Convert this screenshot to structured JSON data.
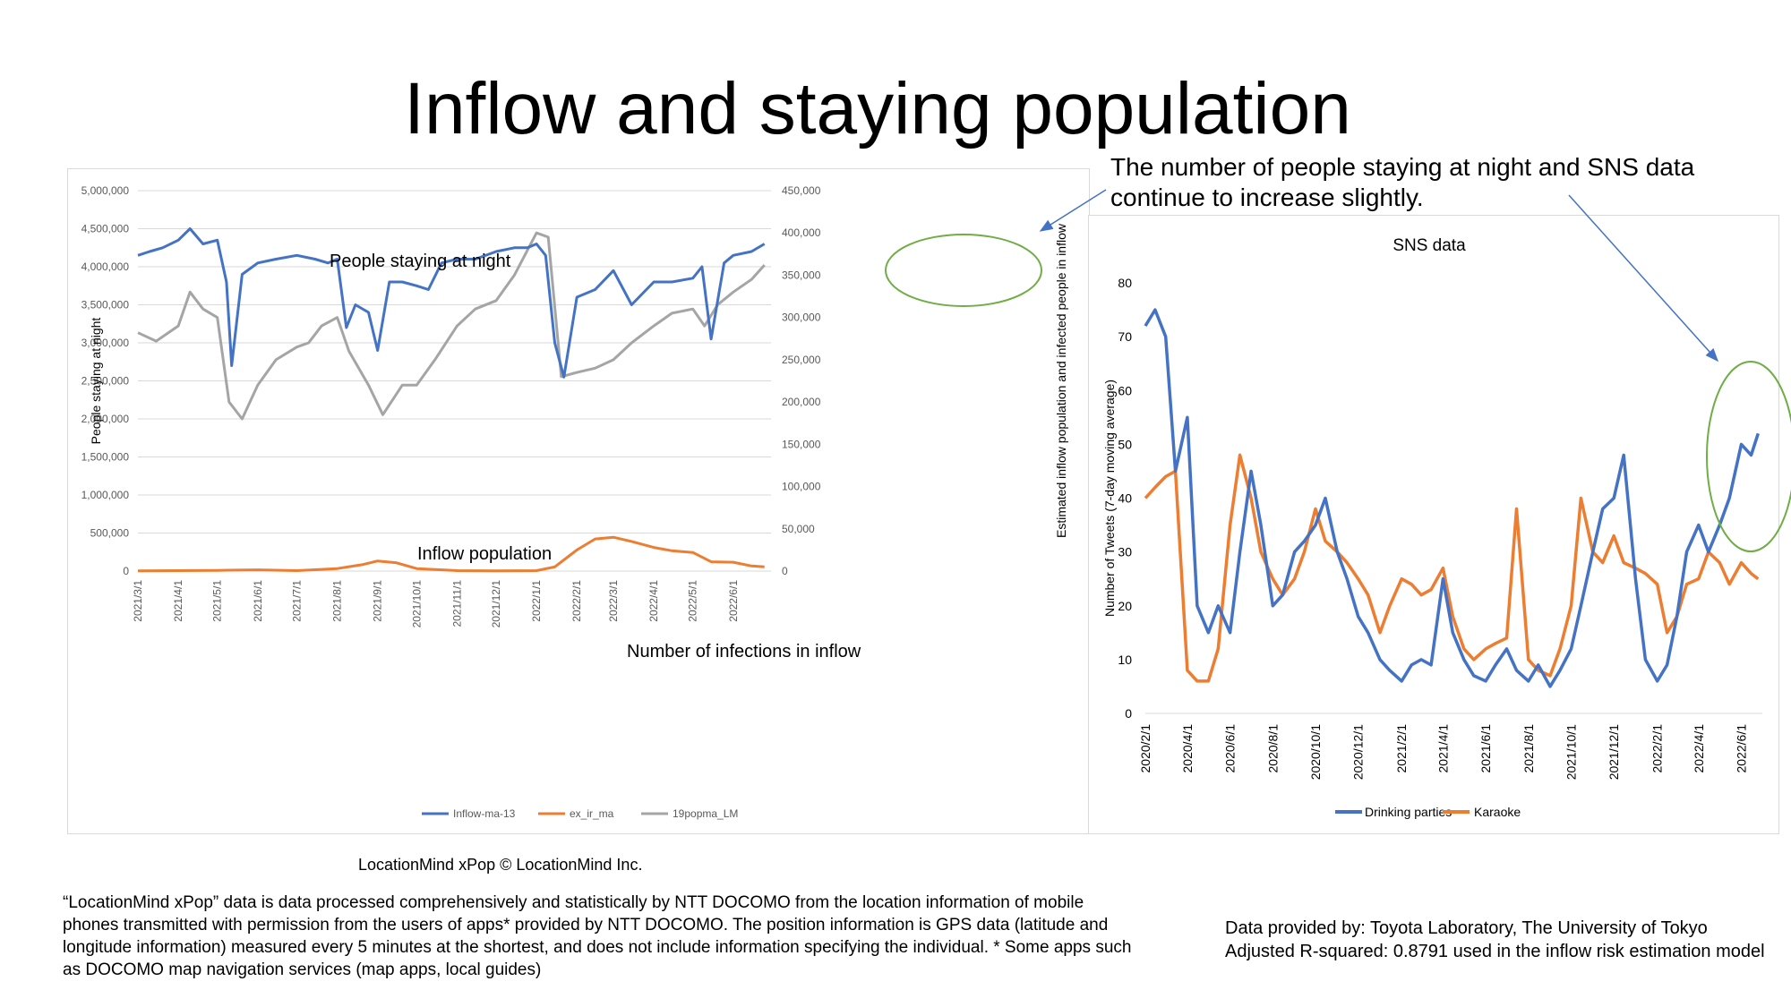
{
  "slide": {
    "title": "Inflow and staying population",
    "annotation_right": "The number of people staying at night and SNS data continue to increase slightly.",
    "credit": "LocationMind xPop © LocationMind Inc.",
    "footnote": "“LocationMind xPop” data is data processed comprehensively and statistically by NTT DOCOMO from the location information of mobile phones transmitted with permission from the users of apps* provided by NTT DOCOMO. The position information is GPS data (latitude and longitude information) measured every 5 minutes at the shortest, and does not include information specifying the individual. * Some apps such as DOCOMO map navigation services (map apps, local guides)",
    "data_source": "Data provided by: Toyota Laboratory, The University of Tokyo Adjusted R-squared: 0.8791 used in the inflow risk estimation model",
    "colors": {
      "blue": "#4472c4",
      "orange": "#ed7d31",
      "gray": "#a5a5a5",
      "green_circle": "#70ad47",
      "arrow": "#4472c4"
    }
  },
  "chart_data": [
    {
      "type": "line",
      "title": "",
      "ylabel": "People staying at night",
      "y2label": "Estimated inflow population and infected people in inflow",
      "ylim": [
        0,
        5000000
      ],
      "y2lim": [
        0,
        450000
      ],
      "yticks": [
        "5,000,000",
        "4,500,000",
        "4,000,000",
        "3,500,000",
        "3,000,000",
        "2,500,000",
        "2,000,000",
        "1,500,000",
        "1,000,000",
        "500,000",
        "0"
      ],
      "y2ticks": [
        "450,000",
        "400,000",
        "350,000",
        "300,000",
        "250,000",
        "200,000",
        "150,000",
        "100,000",
        "50,000",
        "0"
      ],
      "xticks": [
        "2021/3/1",
        "2021/4/1",
        "2021/5/1",
        "2021/6/1",
        "2021/7/1",
        "2021/8/1",
        "2021/9/1",
        "2021/10/1",
        "2021/11/1",
        "2021/12/1",
        "2022/1/1",
        "2022/2/1",
        "2022/3/1",
        "2022/4/1",
        "2022/5/1",
        "2022/6/1"
      ],
      "annotations": {
        "staying": "People staying at night",
        "inflow": "Inflow population",
        "infections": "Number of infections in inflow"
      },
      "legend_position": "bottom",
      "series": [
        {
          "name": "Inflow-ma-13",
          "axis": "left",
          "color": "#4472c4",
          "x": [
            "2021/3/1",
            "2021/3/10",
            "2021/3/20",
            "2021/4/1",
            "2021/4/10",
            "2021/4/20",
            "2021/5/1",
            "2021/5/8",
            "2021/5/12",
            "2021/5/20",
            "2021/6/1",
            "2021/6/15",
            "2021/7/1",
            "2021/7/15",
            "2021/7/25",
            "2021/8/1",
            "2021/8/8",
            "2021/8/15",
            "2021/8/25",
            "2021/9/1",
            "2021/9/10",
            "2021/9/20",
            "2021/10/1",
            "2021/10/10",
            "2021/10/20",
            "2021/11/1",
            "2021/11/15",
            "2021/12/1",
            "2021/12/15",
            "2021/12/25",
            "2022/1/1",
            "2022/1/8",
            "2022/1/15",
            "2022/1/22",
            "2022/2/1",
            "2022/2/15",
            "2022/3/1",
            "2022/3/15",
            "2022/4/1",
            "2022/4/15",
            "2022/5/1",
            "2022/5/8",
            "2022/5/15",
            "2022/5/25",
            "2022/6/1",
            "2022/6/15",
            "2022/6/25"
          ],
          "values": [
            4150000,
            4200000,
            4250000,
            4350000,
            4500000,
            4300000,
            4350000,
            3800000,
            2700000,
            3900000,
            4050000,
            4100000,
            4150000,
            4100000,
            4050000,
            4100000,
            3200000,
            3500000,
            3400000,
            2900000,
            3800000,
            3800000,
            3750000,
            3700000,
            4050000,
            4100000,
            4100000,
            4200000,
            4250000,
            4250000,
            4300000,
            4150000,
            3000000,
            2550000,
            3600000,
            3700000,
            3950000,
            3500000,
            3800000,
            3800000,
            3850000,
            4000000,
            3050000,
            4050000,
            4150000,
            4200000,
            4300000
          ]
        },
        {
          "name": "ex_ir_ma",
          "axis": "right",
          "color": "#ed7d31",
          "x": [
            "2021/3/1",
            "2021/5/1",
            "2021/6/1",
            "2021/7/1",
            "2021/8/1",
            "2021/8/20",
            "2021/9/1",
            "2021/9/15",
            "2021/10/1",
            "2021/11/1",
            "2021/12/1",
            "2022/1/1",
            "2022/1/15",
            "2022/2/1",
            "2022/2/15",
            "2022/3/1",
            "2022/3/15",
            "2022/4/1",
            "2022/4/15",
            "2022/5/1",
            "2022/5/15",
            "2022/6/1",
            "2022/6/15",
            "2022/6/25"
          ],
          "values": [
            300,
            800,
            1500,
            500,
            3000,
            7500,
            12000,
            10000,
            3000,
            500,
            300,
            500,
            5000,
            25000,
            38000,
            40000,
            35000,
            28000,
            24000,
            22000,
            11000,
            10500,
            6000,
            5000
          ]
        },
        {
          "name": "19popma_LM",
          "axis": "right",
          "color": "#a5a5a5",
          "x": [
            "2021/3/1",
            "2021/3/15",
            "2021/4/1",
            "2021/4/10",
            "2021/4/20",
            "2021/5/1",
            "2021/5/10",
            "2021/5/20",
            "2021/6/1",
            "2021/6/15",
            "2021/7/1",
            "2021/7/10",
            "2021/7/20",
            "2021/8/1",
            "2021/8/10",
            "2021/8/25",
            "2021/9/5",
            "2021/9/20",
            "2021/10/1",
            "2021/10/15",
            "2021/11/1",
            "2021/11/15",
            "2021/12/1",
            "2021/12/15",
            "2022/1/1",
            "2022/1/10",
            "2022/1/20",
            "2022/2/1",
            "2022/2/15",
            "2022/3/1",
            "2022/3/15",
            "2022/4/1",
            "2022/4/15",
            "2022/5/1",
            "2022/5/10",
            "2022/5/20",
            "2022/6/1",
            "2022/6/15",
            "2022/6/25"
          ],
          "values": [
            282000,
            272000,
            290000,
            330000,
            310000,
            300000,
            200000,
            180000,
            220000,
            250000,
            265000,
            270000,
            290000,
            300000,
            260000,
            220000,
            185000,
            220000,
            220000,
            250000,
            290000,
            310000,
            320000,
            350000,
            400000,
            395000,
            230000,
            235000,
            240000,
            250000,
            270000,
            290000,
            305000,
            310000,
            290000,
            315000,
            330000,
            345000,
            362000
          ]
        }
      ]
    },
    {
      "type": "line",
      "title": "SNS data",
      "ylabel": "Number of Tweets (7-day moving average)",
      "ylim": [
        0,
        80
      ],
      "yticks": [
        "80",
        "70",
        "60",
        "50",
        "40",
        "30",
        "20",
        "10",
        "0"
      ],
      "xticks": [
        "2020/2/1",
        "2020/4/1",
        "2020/6/1",
        "2020/8/1",
        "2020/10/1",
        "2020/12/1",
        "2021/2/1",
        "2021/4/1",
        "2021/6/1",
        "2021/8/1",
        "2021/10/1",
        "2021/12/1",
        "2022/2/1",
        "2022/4/1",
        "2022/6/1"
      ],
      "legend_position": "bottom",
      "series": [
        {
          "name": "Drinking parties",
          "color": "#4472c4",
          "x": [
            "2020/2/1",
            "2020/2/15",
            "2020/3/1",
            "2020/3/15",
            "2020/4/1",
            "2020/4/15",
            "2020/5/1",
            "2020/5/15",
            "2020/6/1",
            "2020/6/15",
            "2020/7/1",
            "2020/7/15",
            "2020/8/1",
            "2020/8/15",
            "2020/9/1",
            "2020/9/15",
            "2020/10/1",
            "2020/10/15",
            "2020/11/1",
            "2020/11/15",
            "2020/12/1",
            "2020/12/15",
            "2021/1/1",
            "2021/1/15",
            "2021/2/1",
            "2021/2/15",
            "2021/3/1",
            "2021/3/15",
            "2021/4/1",
            "2021/4/15",
            "2021/5/1",
            "2021/5/15",
            "2021/6/1",
            "2021/6/15",
            "2021/7/1",
            "2021/7/15",
            "2021/8/1",
            "2021/8/15",
            "2021/9/1",
            "2021/9/15",
            "2021/10/1",
            "2021/10/15",
            "2021/11/1",
            "2021/11/15",
            "2021/12/1",
            "2021/12/15",
            "2022/1/1",
            "2022/1/15",
            "2022/2/1",
            "2022/2/15",
            "2022/3/1",
            "2022/3/15",
            "2022/4/1",
            "2022/4/15",
            "2022/5/1",
            "2022/5/15",
            "2022/6/1",
            "2022/6/15",
            "2022/6/25"
          ],
          "values": [
            72,
            75,
            70,
            45,
            55,
            20,
            15,
            20,
            15,
            30,
            45,
            35,
            20,
            22,
            30,
            32,
            35,
            40,
            30,
            25,
            18,
            15,
            10,
            8,
            6,
            9,
            10,
            9,
            25,
            15,
            10,
            7,
            6,
            9,
            12,
            8,
            6,
            9,
            5,
            8,
            12,
            20,
            30,
            38,
            40,
            48,
            25,
            10,
            6,
            9,
            18,
            30,
            35,
            30,
            35,
            40,
            50,
            48,
            52
          ]
        },
        {
          "name": "Karaoke",
          "color": "#ed7d31",
          "x": [
            "2020/2/1",
            "2020/2/15",
            "2020/3/1",
            "2020/3/15",
            "2020/4/1",
            "2020/4/15",
            "2020/5/1",
            "2020/5/15",
            "2020/6/1",
            "2020/6/15",
            "2020/7/1",
            "2020/7/15",
            "2020/8/1",
            "2020/8/15",
            "2020/9/1",
            "2020/9/15",
            "2020/10/1",
            "2020/10/15",
            "2020/11/1",
            "2020/11/15",
            "2020/12/1",
            "2020/12/15",
            "2021/1/1",
            "2021/1/15",
            "2021/2/1",
            "2021/2/15",
            "2021/3/1",
            "2021/3/15",
            "2021/4/1",
            "2021/4/15",
            "2021/5/1",
            "2021/5/15",
            "2021/6/1",
            "2021/6/15",
            "2021/7/1",
            "2021/7/15",
            "2021/8/1",
            "2021/8/15",
            "2021/9/1",
            "2021/9/15",
            "2021/10/1",
            "2021/10/15",
            "2021/11/1",
            "2021/11/15",
            "2021/12/1",
            "2021/12/15",
            "2022/1/1",
            "2022/1/15",
            "2022/2/1",
            "2022/2/15",
            "2022/3/1",
            "2022/3/15",
            "2022/4/1",
            "2022/4/15",
            "2022/5/1",
            "2022/5/15",
            "2022/6/1",
            "2022/6/15",
            "2022/6/25"
          ],
          "values": [
            40,
            42,
            44,
            45,
            8,
            6,
            6,
            12,
            35,
            48,
            40,
            30,
            25,
            22,
            25,
            30,
            38,
            32,
            30,
            28,
            25,
            22,
            15,
            20,
            25,
            24,
            22,
            23,
            27,
            18,
            12,
            10,
            12,
            13,
            14,
            38,
            10,
            8,
            7,
            12,
            20,
            40,
            30,
            28,
            33,
            28,
            27,
            26,
            24,
            15,
            18,
            24,
            25,
            30,
            28,
            24,
            28,
            26,
            25
          ]
        }
      ]
    }
  ]
}
